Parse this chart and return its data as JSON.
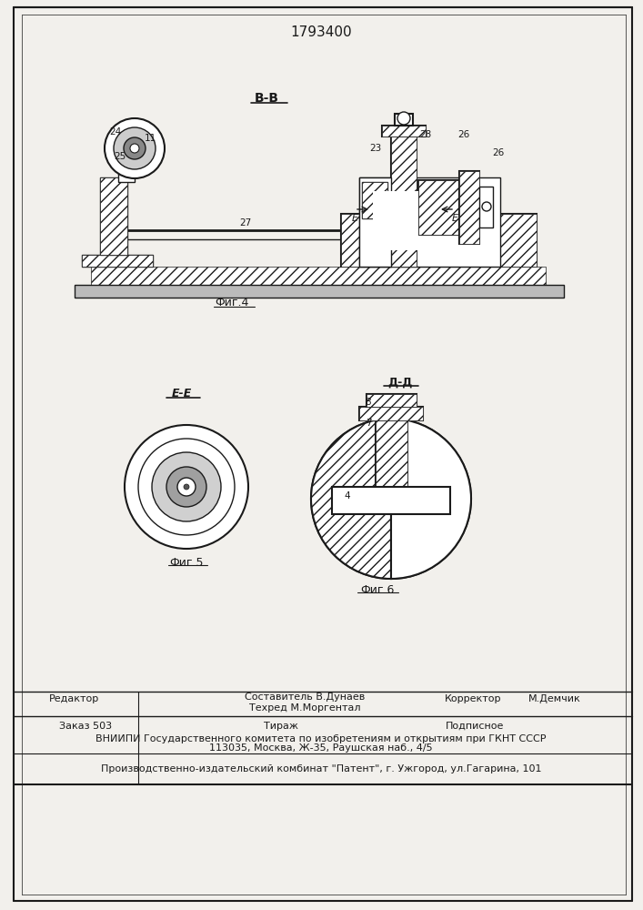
{
  "patent_number": "1793400",
  "background_color": "#f2f0ec",
  "border_color": "#000000",
  "fig4_label": "Фиг.4",
  "fig5_label": "Фиг.5",
  "fig6_label": "Фиг.6",
  "section_BB": "В-В",
  "section_DD": "Д-Д",
  "section_EE": "Е-Е",
  "footer_line1_left": "Редактор",
  "footer_line1_center1": "Составитель В.Дунаев",
  "footer_line1_center2": "Техред М.Моргентал",
  "footer_line1_right1": "Корректор",
  "footer_line1_right2": "М.Демчик",
  "footer_line2_left": "Заказ 503",
  "footer_line2_center": "Тираж",
  "footer_line2_right": "Подписное",
  "footer_line3": "ВНИИПИ Государственного комитета по изобретениям и открытиям при ГКНТ СССР",
  "footer_line4": "113035, Москва, Ж-35, Раушская наб., 4/5",
  "footer_line5": "Производственно-издательский комбинат \"Патент\", г. Ужгород, ул.Гагарина, 101",
  "line_color": "#1a1a1a",
  "text_color": "#1a1a1a"
}
